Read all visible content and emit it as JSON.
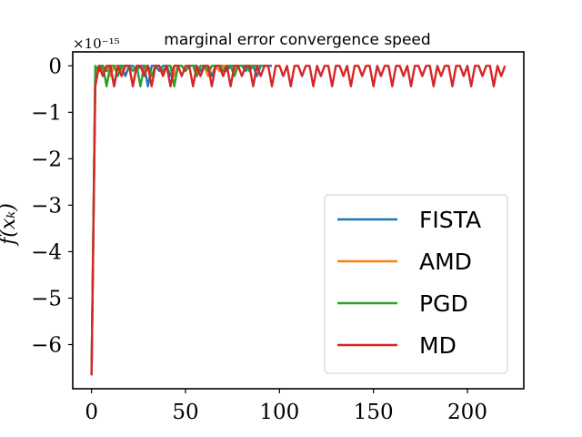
{
  "chart_data": {
    "type": "line",
    "title": "marginal error convergence speed",
    "ylabel": "f(x_k)",
    "ylabel_display": "f(xₖ)",
    "y_offset_label": "×10⁻¹⁵",
    "xlim": [
      -10,
      230
    ],
    "ylim": [
      -6.95,
      0.3
    ],
    "x_ticks": [
      0,
      50,
      100,
      150,
      200
    ],
    "x_tick_labels": [
      "0",
      "50",
      "100",
      "150",
      "200"
    ],
    "y_ticks": [
      0,
      -1,
      -2,
      -3,
      -4,
      -5,
      -6
    ],
    "y_tick_labels": [
      "0",
      "−1",
      "−2",
      "−3",
      "−4",
      "−5",
      "−6"
    ],
    "legend_position": "lower-right",
    "series": [
      {
        "name": "FISTA",
        "color": "#1f77b4",
        "x": [
          0,
          2,
          4,
          6,
          8,
          10,
          12,
          14,
          16,
          18,
          20,
          22,
          24,
          26,
          28,
          30,
          32,
          34,
          36,
          38,
          40,
          42,
          44,
          46,
          48,
          50,
          52,
          54,
          56,
          58,
          60,
          62,
          64,
          66,
          68,
          70,
          72,
          74,
          76,
          78,
          80,
          82,
          84,
          86,
          88,
          90,
          92,
          94,
          96
        ],
        "y": [
          -6.66,
          -0.11,
          0,
          0,
          -0.11,
          0,
          -0.44,
          0,
          0,
          -0.22,
          0,
          0,
          -0.11,
          0,
          0,
          -0.44,
          0,
          0,
          -0.11,
          0,
          0,
          -0.22,
          0,
          0,
          0,
          -0.11,
          0,
          0,
          0,
          -0.11,
          0,
          0,
          -0.22,
          0,
          0,
          0,
          -0.11,
          0,
          0,
          0,
          0,
          -0.11,
          0,
          0,
          -0.22,
          0,
          0,
          0,
          0
        ]
      },
      {
        "name": "AMD",
        "color": "#ff7f0e",
        "x": [
          0,
          2,
          4,
          6,
          8,
          10,
          12,
          14,
          16,
          18,
          20,
          22,
          24,
          26,
          28,
          30,
          32,
          34,
          36,
          38,
          40,
          42,
          44,
          46,
          48,
          50,
          52,
          54,
          56,
          58,
          60,
          62,
          64,
          66,
          68,
          70,
          72,
          74,
          76,
          78,
          80,
          82,
          84,
          86,
          88
        ],
        "y": [
          -6.66,
          -0.22,
          0,
          -0.11,
          0,
          -0.22,
          0,
          0,
          -0.11,
          0,
          0,
          -0.44,
          0,
          0,
          -0.11,
          0,
          -0.22,
          0,
          0,
          -0.11,
          0,
          0,
          -0.22,
          0,
          0,
          -0.11,
          0,
          0,
          -0.11,
          0,
          0,
          -0.22,
          0,
          0,
          -0.11,
          0,
          0,
          0,
          -0.11,
          0,
          0,
          0,
          -0.11,
          0,
          0
        ]
      },
      {
        "name": "PGD",
        "color": "#2ca02c",
        "x": [
          0,
          2,
          4,
          6,
          8,
          10,
          12,
          14,
          16,
          18,
          20,
          22,
          24,
          26,
          28,
          30,
          32,
          34,
          36,
          38,
          40,
          42,
          44,
          46,
          48,
          50,
          52,
          54,
          56,
          58,
          60,
          62,
          64,
          66,
          68,
          70,
          72,
          74,
          76,
          78,
          80,
          82,
          84,
          86,
          88,
          90,
          92
        ],
        "y": [
          -6.66,
          0,
          -0.11,
          0,
          -0.44,
          0,
          0,
          -0.22,
          0,
          0,
          0,
          -0.11,
          0,
          -0.44,
          0,
          0,
          -0.22,
          0,
          0,
          -0.11,
          0,
          0,
          -0.44,
          0,
          0,
          -0.11,
          0,
          0,
          -0.22,
          0,
          0,
          -0.11,
          0,
          0,
          0,
          -0.11,
          0,
          0,
          -0.22,
          0,
          0,
          0,
          -0.11,
          0,
          0,
          0,
          0
        ]
      },
      {
        "name": "MD",
        "color": "#d62728",
        "x": [
          0,
          2,
          4,
          6,
          8,
          10,
          12,
          14,
          16,
          18,
          20,
          22,
          24,
          26,
          28,
          30,
          32,
          34,
          36,
          38,
          40,
          42,
          44,
          46,
          48,
          50,
          52,
          54,
          56,
          58,
          60,
          62,
          64,
          66,
          68,
          70,
          72,
          74,
          76,
          78,
          80,
          82,
          84,
          86,
          88,
          90,
          92,
          94,
          96,
          98,
          100,
          102,
          104,
          106,
          108,
          110,
          112,
          114,
          116,
          118,
          120,
          122,
          124,
          126,
          128,
          130,
          132,
          134,
          136,
          138,
          140,
          142,
          144,
          146,
          148,
          150,
          152,
          154,
          156,
          158,
          160,
          162,
          164,
          166,
          168,
          170,
          172,
          174,
          176,
          178,
          180,
          182,
          184,
          186,
          188,
          190,
          192,
          194,
          196,
          198,
          200,
          202,
          204,
          206,
          208,
          210,
          212,
          214,
          216,
          218,
          220
        ],
        "y": [
          -6.66,
          -0.44,
          0,
          -0.22,
          0,
          0,
          -0.44,
          0,
          -0.22,
          0,
          0,
          -0.44,
          0,
          0,
          -0.22,
          0,
          -0.44,
          0,
          0,
          -0.22,
          0,
          -0.44,
          0,
          0,
          -0.22,
          0,
          0,
          -0.44,
          0,
          -0.22,
          0,
          0,
          -0.44,
          0,
          0,
          -0.22,
          0,
          -0.44,
          0,
          0,
          -0.22,
          0,
          0,
          -0.44,
          0,
          -0.22,
          0,
          0,
          -0.44,
          0,
          0,
          -0.22,
          0,
          -0.44,
          0,
          0,
          -0.22,
          0,
          0,
          -0.44,
          0,
          -0.22,
          0,
          0,
          -0.44,
          0,
          0,
          -0.22,
          0,
          -0.44,
          0,
          0,
          -0.22,
          0,
          0,
          -0.44,
          0,
          -0.22,
          0,
          0,
          -0.44,
          0,
          0,
          -0.22,
          0,
          -0.44,
          0,
          0,
          -0.22,
          0,
          0,
          -0.44,
          0,
          -0.22,
          0,
          0,
          -0.44,
          0,
          0,
          -0.22,
          0,
          -0.44,
          0,
          0,
          -0.22,
          0,
          0,
          -0.44,
          0,
          -0.22,
          0
        ]
      }
    ]
  }
}
